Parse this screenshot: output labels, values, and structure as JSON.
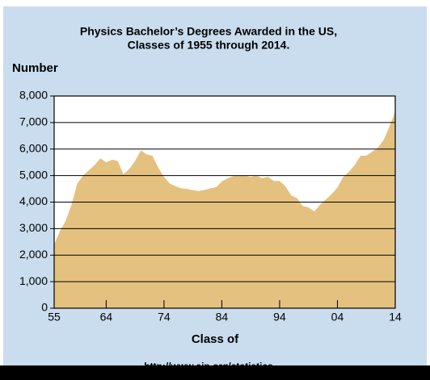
{
  "chart_data": {
    "type": "area",
    "title_lines": [
      "Physics Bachelor’s Degrees Awarded in the US,",
      "Classes of 1955 through 2014."
    ],
    "y_label": "Number",
    "x_label": "Class of",
    "source": "http://www.aip.org/statistics",
    "color": "#e5c17f",
    "grid": true,
    "x": [
      1955,
      1956,
      1957,
      1958,
      1959,
      1960,
      1961,
      1962,
      1963,
      1964,
      1965,
      1966,
      1967,
      1968,
      1969,
      1970,
      1971,
      1972,
      1973,
      1974,
      1975,
      1976,
      1977,
      1978,
      1979,
      1980,
      1981,
      1982,
      1983,
      1984,
      1985,
      1986,
      1987,
      1988,
      1989,
      1990,
      1991,
      1992,
      1993,
      1994,
      1995,
      1996,
      1997,
      1998,
      1999,
      2000,
      2001,
      2002,
      2003,
      2004,
      2005,
      2006,
      2007,
      2008,
      2009,
      2010,
      2011,
      2012,
      2013,
      2014
    ],
    "values": [
      2400,
      2900,
      3300,
      3900,
      4700,
      5000,
      5200,
      5400,
      5650,
      5500,
      5600,
      5550,
      5050,
      5250,
      5550,
      5950,
      5800,
      5750,
      5300,
      4950,
      4700,
      4600,
      4520,
      4500,
      4450,
      4420,
      4460,
      4520,
      4560,
      4780,
      4900,
      4980,
      5000,
      5000,
      4950,
      5000,
      4900,
      4950,
      4800,
      4800,
      4600,
      4250,
      4150,
      3850,
      3800,
      3650,
      3900,
      4100,
      4300,
      4550,
      4950,
      5150,
      5400,
      5750,
      5750,
      5900,
      6050,
      6350,
      6850,
      7400
    ],
    "xlim": [
      1955,
      2014
    ],
    "xticks": [
      {
        "value": 1955,
        "label": "55"
      },
      {
        "value": 1964,
        "label": "64"
      },
      {
        "value": 1974,
        "label": "74"
      },
      {
        "value": 1984,
        "label": "84"
      },
      {
        "value": 1994,
        "label": "94"
      },
      {
        "value": 2004,
        "label": "04"
      },
      {
        "value": 2014,
        "label": "14"
      }
    ],
    "ylim": [
      0,
      8000
    ],
    "yticks": [
      0,
      {
        "value": 1000,
        "label": "1,000"
      },
      {
        "value": 2000,
        "label": "2,000"
      },
      {
        "value": 3000,
        "label": "3,000"
      },
      {
        "value": 4000,
        "label": "4,000"
      },
      {
        "value": 5000,
        "label": "5,000"
      },
      {
        "value": 6000,
        "label": "6,000"
      },
      {
        "value": 7000,
        "label": "7,000"
      },
      {
        "value": 8000,
        "label": "8,000"
      }
    ]
  }
}
